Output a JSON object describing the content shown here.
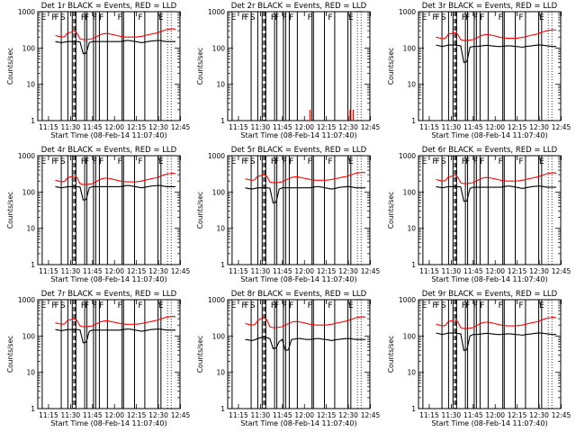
{
  "figure": {
    "background": "#ffffff",
    "event_color": "#000000",
    "lld_color": "#ff0000"
  },
  "chart_data": [
    {
      "type": "line",
      "title": "Det 1r BLACK = Events, RED = LLD",
      "xlabel": "Start Time (08-Feb-14 11:07:40)",
      "ylabel": "Counts/sec",
      "ylog": true,
      "ylim": [
        1,
        1000
      ],
      "xticks": [
        "11:15",
        "11:30",
        "11:45",
        "12:00",
        "12:15",
        "12:30",
        "12:45"
      ],
      "yticks": [
        "1",
        "10",
        "100",
        "1000"
      ],
      "flags": [
        "E",
        "F",
        "F",
        "S",
        "F",
        "F",
        "F",
        "F",
        "F",
        "F",
        "E"
      ],
      "series": [
        {
          "color": "#000000",
          "values": [
            150,
            145,
            140,
            145,
            150,
            150,
            152,
            150,
            148,
            70,
            72,
            140,
            150,
            150,
            150,
            150,
            150,
            150,
            150,
            150,
            150,
            150,
            155,
            160,
            160,
            155,
            150,
            145,
            140,
            145,
            150,
            155,
            158,
            160,
            160,
            155,
            150,
            150,
            150,
            150
          ]
        },
        {
          "color": "#ff0000",
          "values": [
            220,
            210,
            200,
            205,
            260,
            270,
            290,
            260,
            180,
            170,
            170,
            175,
            180,
            200,
            220,
            240,
            250,
            250,
            240,
            230,
            220,
            210,
            205,
            200,
            200,
            200,
            200,
            205,
            210,
            220,
            230,
            240,
            250,
            260,
            280,
            300,
            320,
            330,
            340,
            330
          ]
        }
      ]
    },
    {
      "type": "line",
      "title": "Det 2r BLACK = Events, RED = LLD",
      "xlabel": "Start Time (08-Feb-14 11:07:40)",
      "ylabel": "Counts/sec",
      "ylog": true,
      "ylim": [
        1,
        1000
      ],
      "xticks": [
        "11:15",
        "11:30",
        "11:45",
        "12:00",
        "12:15",
        "12:30",
        "12:45"
      ],
      "yticks": [
        "1",
        "10",
        "100",
        "1000"
      ],
      "flags": [
        "E",
        "F",
        "F",
        "S",
        "F",
        "F",
        "F",
        "F",
        "F",
        "F",
        "E"
      ],
      "series": [
        {
          "color": "#000000",
          "values": []
        },
        {
          "color": "#ff0000",
          "values": [
            1,
            1,
            1,
            1,
            1,
            1,
            1,
            1,
            1,
            1,
            1,
            1,
            1,
            1,
            1,
            1,
            1,
            1,
            1,
            1,
            1,
            2,
            1,
            1,
            1,
            1,
            1,
            1,
            1,
            1,
            1,
            1,
            1,
            1,
            2,
            2,
            1,
            1,
            1,
            1
          ]
        }
      ]
    },
    {
      "type": "line",
      "title": "Det 3r BLACK = Events, RED = LLD",
      "xlabel": "Start Time (08-Feb-14 11:07:40)",
      "ylabel": "Counts/sec",
      "ylog": true,
      "ylim": [
        1,
        1000
      ],
      "xticks": [
        "11:15",
        "11:30",
        "11:45",
        "12:00",
        "12:15",
        "12:30",
        "12:45"
      ],
      "yticks": [
        "1",
        "10",
        "100",
        "1000"
      ],
      "flags": [
        "E",
        "F",
        "F",
        "S",
        "F",
        "F",
        "F",
        "F",
        "F",
        "F",
        "E"
      ],
      "series": [
        {
          "color": "#000000",
          "values": [
            120,
            115,
            110,
            115,
            120,
            120,
            120,
            118,
            115,
            40,
            42,
            105,
            110,
            110,
            112,
            115,
            118,
            118,
            115,
            112,
            110,
            110,
            112,
            115,
            115,
            112,
            110,
            108,
            105,
            110,
            112,
            115,
            118,
            120,
            120,
            118,
            115,
            112,
            110,
            110
          ]
        },
        {
          "color": "#ff0000",
          "values": [
            200,
            190,
            180,
            185,
            240,
            250,
            270,
            240,
            170,
            160,
            160,
            165,
            170,
            185,
            205,
            225,
            235,
            235,
            225,
            215,
            205,
            195,
            190,
            185,
            185,
            185,
            185,
            190,
            195,
            205,
            215,
            225,
            235,
            245,
            265,
            285,
            300,
            310,
            320,
            310
          ]
        }
      ]
    },
    {
      "type": "line",
      "title": "Det 4r BLACK = Events, RED = LLD",
      "xlabel": "Start Time (08-Feb-14 11:07:40)",
      "ylabel": "Counts/sec",
      "ylog": true,
      "ylim": [
        1,
        1000
      ],
      "xticks": [
        "11:15",
        "11:30",
        "11:45",
        "12:00",
        "12:15",
        "12:30",
        "12:45"
      ],
      "yticks": [
        "1",
        "10",
        "100",
        "1000"
      ],
      "flags": [
        "E",
        "F",
        "F",
        "S",
        "F",
        "F",
        "F",
        "F",
        "F",
        "F",
        "E"
      ],
      "series": [
        {
          "color": "#000000",
          "values": [
            140,
            135,
            130,
            135,
            140,
            140,
            142,
            140,
            138,
            60,
            62,
            130,
            140,
            140,
            140,
            140,
            140,
            140,
            140,
            140,
            140,
            140,
            145,
            150,
            150,
            145,
            140,
            135,
            130,
            135,
            140,
            145,
            148,
            150,
            150,
            145,
            140,
            140,
            140,
            140
          ]
        },
        {
          "color": "#ff0000",
          "values": [
            210,
            200,
            190,
            195,
            250,
            260,
            280,
            250,
            170,
            160,
            160,
            165,
            170,
            190,
            210,
            230,
            240,
            240,
            230,
            220,
            210,
            200,
            195,
            190,
            190,
            190,
            190,
            195,
            200,
            210,
            220,
            230,
            240,
            250,
            270,
            290,
            310,
            320,
            330,
            320
          ]
        }
      ]
    },
    {
      "type": "line",
      "title": "Det 5r BLACK = Events, RED = LLD",
      "xlabel": "Start Time (08-Feb-14 11:07:40)",
      "ylabel": "Counts/sec",
      "ylog": true,
      "ylim": [
        1,
        1000
      ],
      "xticks": [
        "11:15",
        "11:30",
        "11:45",
        "12:00",
        "12:15",
        "12:30",
        "12:45"
      ],
      "yticks": [
        "1",
        "10",
        "100",
        "1000"
      ],
      "flags": [
        "E",
        "F",
        "F",
        "S",
        "F",
        "F",
        "F",
        "F",
        "F",
        "F",
        "E"
      ],
      "series": [
        {
          "color": "#000000",
          "values": [
            130,
            125,
            120,
            125,
            130,
            130,
            132,
            130,
            128,
            50,
            52,
            120,
            130,
            130,
            130,
            130,
            130,
            130,
            130,
            130,
            130,
            130,
            135,
            140,
            140,
            135,
            130,
            125,
            120,
            125,
            130,
            135,
            138,
            140,
            140,
            135,
            130,
            130,
            130,
            130
          ]
        },
        {
          "color": "#ff0000",
          "values": [
            230,
            220,
            210,
            215,
            270,
            280,
            300,
            270,
            190,
            180,
            180,
            185,
            190,
            210,
            230,
            250,
            260,
            260,
            250,
            240,
            230,
            220,
            215,
            210,
            210,
            210,
            210,
            215,
            220,
            230,
            240,
            250,
            260,
            270,
            290,
            310,
            330,
            340,
            350,
            340
          ]
        }
      ]
    },
    {
      "type": "line",
      "title": "Det 6r BLACK = Events, RED = LLD",
      "xlabel": "Start Time (08-Feb-14 11:07:40)",
      "ylabel": "Counts/sec",
      "ylog": true,
      "ylim": [
        1,
        1000
      ],
      "xticks": [
        "11:15",
        "11:30",
        "11:45",
        "12:00",
        "12:15",
        "12:30",
        "12:45"
      ],
      "yticks": [
        "1",
        "10",
        "100",
        "1000"
      ],
      "flags": [
        "E",
        "F",
        "F",
        "S",
        "F",
        "F",
        "F",
        "F",
        "F",
        "F",
        "E"
      ],
      "series": [
        {
          "color": "#000000",
          "values": [
            140,
            135,
            130,
            135,
            140,
            140,
            142,
            140,
            138,
            55,
            57,
            125,
            135,
            135,
            135,
            135,
            135,
            135,
            135,
            135,
            135,
            135,
            140,
            145,
            145,
            140,
            135,
            130,
            125,
            130,
            135,
            140,
            143,
            145,
            145,
            140,
            135,
            135,
            135,
            135
          ]
        },
        {
          "color": "#ff0000",
          "values": [
            220,
            210,
            200,
            205,
            260,
            270,
            290,
            260,
            180,
            170,
            170,
            175,
            180,
            200,
            220,
            240,
            250,
            250,
            240,
            230,
            220,
            210,
            205,
            200,
            200,
            200,
            200,
            205,
            210,
            220,
            230,
            240,
            250,
            260,
            280,
            300,
            320,
            330,
            340,
            330
          ]
        }
      ]
    },
    {
      "type": "line",
      "title": "Det 7r BLACK = Events, RED = LLD",
      "xlabel": "Start Time (08-Feb-14 11:07:40)",
      "ylabel": "Counts/sec",
      "ylog": true,
      "ylim": [
        1,
        1000
      ],
      "xticks": [
        "11:15",
        "11:30",
        "11:45",
        "12:00",
        "12:15",
        "12:30",
        "12:45"
      ],
      "yticks": [
        "1",
        "10",
        "100",
        "1000"
      ],
      "flags": [
        "E",
        "F",
        "F",
        "S",
        "F",
        "F",
        "F",
        "F",
        "F",
        "F",
        "E"
      ],
      "series": [
        {
          "color": "#000000",
          "values": [
            150,
            145,
            140,
            145,
            150,
            150,
            152,
            150,
            148,
            65,
            67,
            135,
            145,
            145,
            145,
            145,
            145,
            145,
            145,
            145,
            145,
            145,
            150,
            155,
            155,
            150,
            145,
            140,
            135,
            140,
            145,
            150,
            153,
            155,
            155,
            150,
            145,
            145,
            145,
            145
          ]
        },
        {
          "color": "#ff0000",
          "values": [
            230,
            220,
            210,
            215,
            270,
            280,
            300,
            270,
            190,
            180,
            180,
            185,
            190,
            210,
            230,
            250,
            260,
            260,
            250,
            240,
            230,
            220,
            215,
            210,
            210,
            210,
            210,
            215,
            220,
            230,
            240,
            250,
            260,
            270,
            290,
            310,
            330,
            340,
            350,
            340
          ]
        }
      ]
    },
    {
      "type": "line",
      "title": "Det 8r BLACK = Events, RED = LLD",
      "xlabel": "Start Time (08-Feb-14 11:07:40)",
      "ylabel": "Counts/sec",
      "ylog": true,
      "ylim": [
        1,
        1000
      ],
      "xticks": [
        "11:15",
        "11:30",
        "11:45",
        "12:00",
        "12:15",
        "12:30",
        "12:45"
      ],
      "yticks": [
        "1",
        "10",
        "100",
        "1000"
      ],
      "flags": [
        "E",
        "F",
        "F",
        "S",
        "F",
        "F",
        "F",
        "F",
        "F",
        "F",
        "E"
      ],
      "series": [
        {
          "color": "#000000",
          "values": [
            80,
            78,
            75,
            78,
            85,
            90,
            95,
            90,
            85,
            45,
            47,
            70,
            80,
            40,
            42,
            80,
            82,
            85,
            85,
            82,
            80,
            80,
            82,
            85,
            85,
            82,
            80,
            78,
            75,
            78,
            80,
            82,
            84,
            85,
            85,
            82,
            80,
            80,
            80,
            80
          ]
        },
        {
          "color": "#ff0000",
          "values": [
            220,
            210,
            200,
            205,
            260,
            300,
            330,
            280,
            180,
            170,
            170,
            175,
            180,
            200,
            220,
            240,
            250,
            250,
            240,
            230,
            220,
            210,
            205,
            200,
            200,
            200,
            200,
            205,
            210,
            220,
            230,
            240,
            250,
            260,
            280,
            300,
            320,
            330,
            340,
            330
          ]
        }
      ]
    },
    {
      "type": "line",
      "title": "Det 9r BLACK = Events, RED = LLD",
      "xlabel": "Start Time (08-Feb-14 11:07:40)",
      "ylabel": "Counts/sec",
      "ylog": true,
      "ylim": [
        1,
        1000
      ],
      "xticks": [
        "11:15",
        "11:30",
        "11:45",
        "12:00",
        "12:15",
        "12:30",
        "12:45"
      ],
      "yticks": [
        "1",
        "10",
        "100",
        "1000"
      ],
      "flags": [
        "E",
        "F",
        "F",
        "S",
        "F",
        "F",
        "F",
        "F",
        "F",
        "F",
        "E"
      ],
      "series": [
        {
          "color": "#000000",
          "values": [
            120,
            115,
            110,
            115,
            120,
            120,
            120,
            118,
            115,
            40,
            42,
            100,
            110,
            110,
            112,
            115,
            118,
            118,
            115,
            112,
            110,
            110,
            112,
            115,
            115,
            112,
            110,
            108,
            105,
            110,
            112,
            115,
            118,
            120,
            120,
            118,
            115,
            112,
            110,
            110
          ]
        },
        {
          "color": "#ff0000",
          "values": [
            210,
            200,
            190,
            195,
            250,
            260,
            280,
            250,
            170,
            160,
            160,
            165,
            170,
            190,
            210,
            230,
            240,
            240,
            230,
            220,
            210,
            200,
            195,
            190,
            190,
            190,
            190,
            195,
            200,
            210,
            220,
            230,
            240,
            250,
            270,
            290,
            310,
            320,
            330,
            320
          ]
        }
      ]
    }
  ]
}
